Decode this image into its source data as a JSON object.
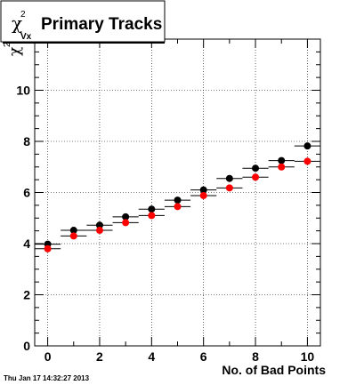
{
  "title": {
    "symbol": "χ",
    "superscript": "2",
    "subscript": "Vx",
    "text": "Primary Tracks"
  },
  "yaxis": {
    "symbol": "χ",
    "superscript": "2"
  },
  "footer": "Thu Jan 17 14:32:27 2013",
  "colors": {
    "series_black": "#000000",
    "series_red": "#ff0000"
  },
  "chart_data": {
    "type": "scatter",
    "title": "χ²Vx Primary Tracks",
    "xlabel": "No. of Bad Points",
    "ylabel": "χ²",
    "xlim": [
      -0.5,
      10.5
    ],
    "ylim": [
      0,
      12
    ],
    "x_ticks": [
      0,
      2,
      4,
      6,
      8,
      10
    ],
    "y_ticks": [
      0,
      2,
      4,
      6,
      8,
      10
    ],
    "grid": true,
    "x_error": 0.5,
    "series": [
      {
        "color": "#000000",
        "x": [
          0,
          1,
          2,
          3,
          4,
          5,
          6,
          7,
          8,
          9,
          10
        ],
        "y": [
          3.98,
          4.52,
          4.72,
          5.05,
          5.35,
          5.7,
          6.1,
          6.55,
          6.95,
          7.25,
          7.82
        ]
      },
      {
        "color": "#ff0000",
        "x": [
          0,
          1,
          2,
          3,
          4,
          5,
          6,
          7,
          8,
          9,
          10
        ],
        "y": [
          3.8,
          4.3,
          4.52,
          4.82,
          5.1,
          5.45,
          5.88,
          6.18,
          6.6,
          7.0,
          7.22
        ]
      }
    ]
  }
}
